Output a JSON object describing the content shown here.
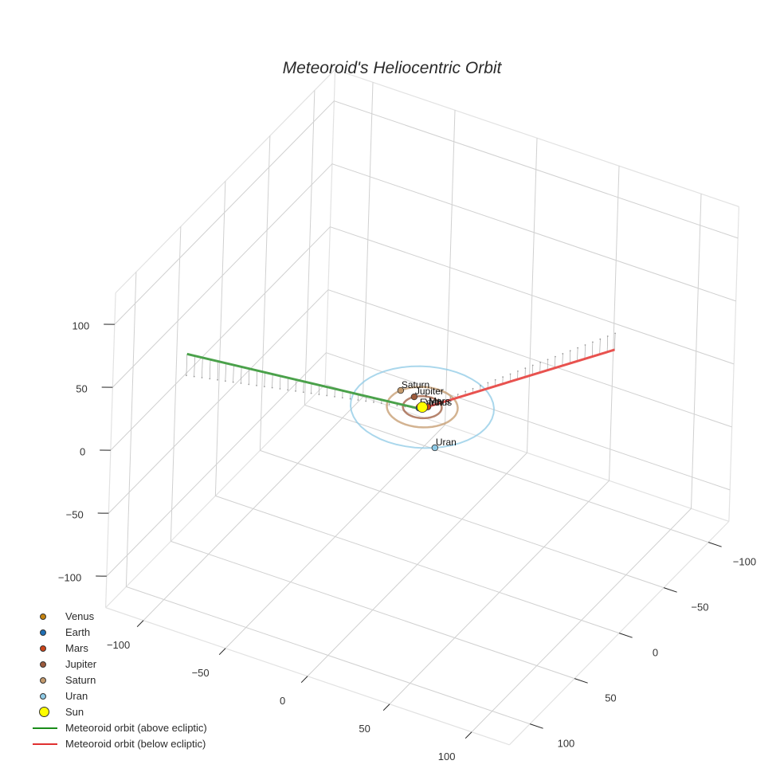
{
  "title": "Meteoroid's Heliocentric Orbit",
  "colors": {
    "grid": "#d0d0d0",
    "tick": "#222222",
    "tick_label": "#333333",
    "above_ecliptic": "#4aa14a",
    "below_ecliptic": "#e8524f",
    "drop_lines": "#9a9a9a"
  },
  "legend": {
    "items": [
      {
        "label": "Venus",
        "type": "marker",
        "color": "#c4820f"
      },
      {
        "label": "Earth",
        "type": "marker",
        "color": "#1f6fb5"
      },
      {
        "label": "Mars",
        "type": "marker",
        "color": "#cc4419"
      },
      {
        "label": "Jupiter",
        "type": "marker",
        "color": "#9c5a3c"
      },
      {
        "label": "Saturn",
        "type": "marker",
        "color": "#c49a6c"
      },
      {
        "label": "Uran",
        "type": "marker",
        "color": "#8ecae6"
      },
      {
        "label": "Sun",
        "type": "marker_large",
        "color": "#ffff00"
      },
      {
        "label": "Meteoroid orbit (above ecliptic)",
        "type": "line",
        "color": "#1a8c1a"
      },
      {
        "label": "Meteoroid orbit (below ecliptic)",
        "type": "line",
        "color": "#e03030"
      }
    ]
  },
  "chart_data": {
    "type": "scatter3d",
    "title": "Meteoroid's Heliocentric Orbit",
    "axes": {
      "x": {
        "ticks": [
          -100,
          -50,
          0,
          50,
          100
        ],
        "range": [
          -123,
          123
        ],
        "grid": true,
        "label": ""
      },
      "y": {
        "ticks": [
          -100,
          -50,
          0,
          50,
          100
        ],
        "range": [
          -123,
          123
        ],
        "grid": true,
        "label": ""
      },
      "z": {
        "ticks": [
          -100,
          -50,
          0,
          50,
          100
        ],
        "range": [
          -125,
          125
        ],
        "grid": true,
        "label": ""
      }
    },
    "tick_labels": {
      "x": [
        "−100",
        "−50",
        "0",
        "50",
        "100"
      ],
      "y": [
        "−100",
        "−50",
        "0",
        "50",
        "100"
      ],
      "z": [
        "−100",
        "−50",
        "0",
        "50",
        "100"
      ]
    },
    "legend_position": "bottom-left",
    "planets": [
      {
        "name": "Venus",
        "label": "Venus",
        "x": 0.7,
        "y": 0.1,
        "z": 0,
        "orbit_radius": 0.72,
        "color": "#c4820f"
      },
      {
        "name": "Earth",
        "label": "Earth",
        "x": -0.5,
        "y": 0.8,
        "z": 0,
        "orbit_radius": 1.0,
        "color": "#1f6fb5"
      },
      {
        "name": "Mars",
        "label": "Mars",
        "x": 1.2,
        "y": -0.9,
        "z": 0,
        "orbit_radius": 1.52,
        "color": "#cc4419"
      },
      {
        "name": "Jupiter",
        "label": "Jupiter",
        "x": -4.0,
        "y": -3.0,
        "z": 0,
        "orbit_radius": 5.2,
        "color": "#9c5a3c"
      },
      {
        "name": "Saturn",
        "label": "Saturn",
        "x": -9.0,
        "y": -4.0,
        "z": 0,
        "orbit_radius": 9.5,
        "color": "#c49a6c"
      },
      {
        "name": "Uran",
        "label": "Uran",
        "x": 12.0,
        "y": 15.0,
        "z": 0,
        "orbit_radius": 19.2,
        "color": "#8ecae6"
      },
      {
        "name": "Sun",
        "label": "",
        "x": 0,
        "y": 0,
        "z": 0,
        "color": "#ffff00"
      }
    ],
    "series": [
      {
        "name": "Meteoroid orbit (above ecliptic)",
        "color": "#4aa14a",
        "x": [
          -122,
          0
        ],
        "y": [
          40,
          2
        ],
        "z": [
          17,
          0
        ],
        "drop_lines": 30
      },
      {
        "name": "Meteoroid orbit (below ecliptic)",
        "color": "#e8524f",
        "x": [
          0,
          55
        ],
        "y": [
          2,
          -115
        ],
        "z": [
          0,
          -13
        ],
        "drop_lines": 26
      }
    ]
  }
}
